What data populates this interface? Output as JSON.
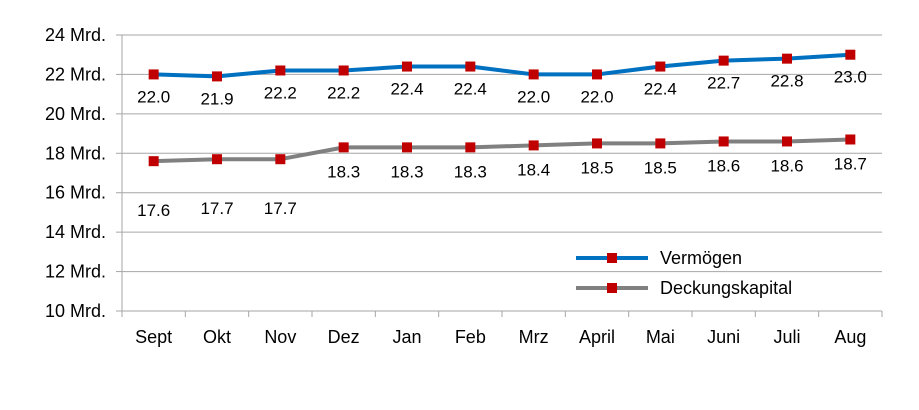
{
  "chart_data": {
    "type": "line",
    "categories": [
      "Sept",
      "Okt",
      "Nov",
      "Dez",
      "Jan",
      "Feb",
      "Mrz",
      "April",
      "Mai",
      "Juni",
      "Juli",
      "Aug"
    ],
    "series": [
      {
        "name": "Vermögen",
        "color": "#0070C0",
        "marker_color": "#C00000",
        "values": [
          22.0,
          21.9,
          22.2,
          22.2,
          22.4,
          22.4,
          22.0,
          22.0,
          22.4,
          22.7,
          22.8,
          23.0
        ],
        "labels": [
          "22.0",
          "21.9",
          "22.2",
          "22.2",
          "22.4",
          "22.4",
          "22.0",
          "22.0",
          "22.4",
          "22.7",
          "22.8",
          "23.0"
        ]
      },
      {
        "name": "Deckungskapital",
        "color": "#808080",
        "marker_color": "#C00000",
        "values": [
          17.6,
          17.7,
          17.7,
          18.3,
          18.3,
          18.3,
          18.4,
          18.5,
          18.5,
          18.6,
          18.6,
          18.7
        ],
        "labels": [
          "17.6",
          "17.7",
          "17.7",
          "18.3",
          "18.3",
          "18.3",
          "18.4",
          "18.5",
          "18.5",
          "18.6",
          "18.6",
          "18.7"
        ]
      }
    ],
    "ylim": [
      10,
      24
    ],
    "yticks": [
      10,
      12,
      14,
      16,
      18,
      20,
      22,
      24
    ],
    "ytick_labels": [
      "10 Mrd.",
      "12 Mrd.",
      "14 Mrd.",
      "16 Mrd.",
      "18 Mrd.",
      "20 Mrd.",
      "22 Mrd.",
      "24 Mrd."
    ],
    "grid": "horizontal",
    "legend_position": "bottom-right"
  }
}
